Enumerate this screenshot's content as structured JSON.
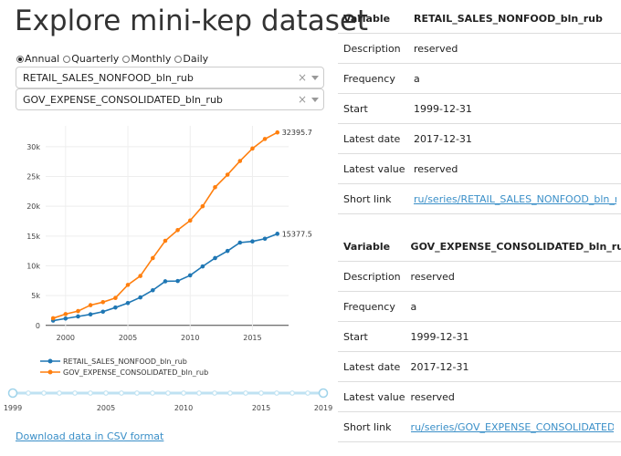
{
  "title": "Explore mini-kep dataset",
  "frequency": {
    "options": [
      "Annual",
      "Quarterly",
      "Monthly",
      "Daily"
    ],
    "selected": "Annual"
  },
  "selects": [
    {
      "value": "RETAIL_SALES_NONFOOD_bln_rub",
      "clear": "×"
    },
    {
      "value": "GOV_EXPENSE_CONSOLIDATED_bln_rub",
      "clear": "×"
    }
  ],
  "chart_data": {
    "type": "line",
    "x": [
      1999,
      2000,
      2001,
      2002,
      2003,
      2004,
      2005,
      2006,
      2007,
      2008,
      2009,
      2010,
      2011,
      2012,
      2013,
      2014,
      2015,
      2016,
      2017
    ],
    "series": [
      {
        "name": "RETAIL_SALES_NONFOOD_bln_rub",
        "color": "#1f77b4",
        "values": [
          800,
          1150,
          1500,
          1850,
          2300,
          3000,
          3750,
          4700,
          5900,
          7400,
          7450,
          8400,
          9900,
          11300,
          12500,
          13900,
          14100,
          14550,
          15377.5
        ]
      },
      {
        "name": "GOV_EXPENSE_CONSOLIDATED_bln_rub",
        "color": "#ff7f0e",
        "values": [
          1200,
          1900,
          2400,
          3400,
          3900,
          4600,
          6800,
          8300,
          11300,
          14200,
          16000,
          17600,
          20000,
          23200,
          25300,
          27600,
          29700,
          31300,
          32395.7
        ]
      }
    ],
    "end_labels": [
      "15377.5",
      "32395.7"
    ],
    "yticks": [
      0,
      5000,
      10000,
      15000,
      20000,
      25000,
      30000
    ],
    "ytick_labels": [
      "0",
      "5k",
      "10k",
      "15k",
      "20k",
      "25k",
      "30k"
    ],
    "xticks": [
      2000,
      2005,
      2010,
      2015
    ],
    "ylim": [
      -800,
      33500
    ],
    "xlim": [
      1998.4,
      2017.9
    ],
    "grid": true,
    "legend_position": "bottom-left"
  },
  "slider": {
    "min": 1999,
    "max": 2019,
    "start": 1999,
    "end": 2019,
    "labels": [
      "1999",
      "2005",
      "2010",
      "2015",
      "2019"
    ],
    "label_years": [
      1999,
      2005,
      2010,
      2015,
      2019
    ]
  },
  "csv_link": "Download data in CSV format",
  "tables": [
    {
      "header": [
        "Variable",
        "RETAIL_SALES_NONFOOD_bln_rub"
      ],
      "rows": [
        [
          "Description",
          "reserved"
        ],
        [
          "Frequency",
          "a"
        ],
        [
          "Start",
          "1999-12-31"
        ],
        [
          "Latest date",
          "2017-12-31"
        ],
        [
          "Latest value",
          "reserved"
        ]
      ],
      "short_link_label": "Short link",
      "short_link": "ru/series/RETAIL_SALES_NONFOOD_bln_rub/a"
    },
    {
      "header": [
        "Variable",
        "GOV_EXPENSE_CONSOLIDATED_bln_rub"
      ],
      "rows": [
        [
          "Description",
          "reserved"
        ],
        [
          "Frequency",
          "a"
        ],
        [
          "Start",
          "1999-12-31"
        ],
        [
          "Latest date",
          "2017-12-31"
        ],
        [
          "Latest value",
          "reserved"
        ]
      ],
      "short_link_label": "Short link",
      "short_link": "ru/series/GOV_EXPENSE_CONSOLIDATED_bln_rub/a"
    }
  ]
}
